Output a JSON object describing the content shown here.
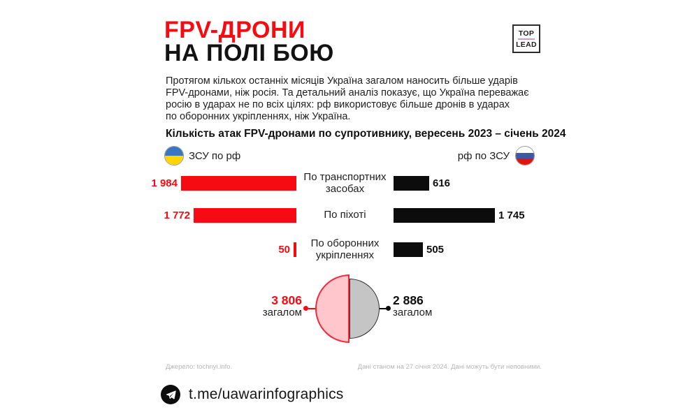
{
  "header": {
    "title_line1": "FPV-ДРОНИ",
    "title_line2": "НА ПОЛІ БОЮ",
    "logo_top": "TOP",
    "logo_lead": "LEAD"
  },
  "intro_lines": [
    "Протягом кількох останніх місяців Україна загалом наносить більше ударів",
    "FPV-дронами, ніж росія. Та детальний аналіз показує, що Україна переважає",
    "росію в ударах не по всіх цілях: рф використовує більше дронів в ударах",
    "по оборонних укріпленнях, ніж Україна."
  ],
  "chart_data": {
    "type": "bar",
    "title": "Кількість атак FPV-дронами по супротивнику, вересень 2023 – січень 2024",
    "legend": [
      {
        "label": "ЗСУ по рф",
        "flag": "ukraine",
        "color": "#f60b12"
      },
      {
        "label": "рф по ЗСУ",
        "flag": "russia",
        "color": "#0c0c0c"
      }
    ],
    "categories": [
      "По транспортних\nзасобах",
      "По піхоті",
      "По оборонних\nукріпленнях"
    ],
    "series": [
      {
        "name": "ЗСУ по рф",
        "values": [
          1984,
          1772,
          50
        ],
        "labels": [
          "1 984",
          "1 772",
          "50"
        ]
      },
      {
        "name": "рф по ЗСУ",
        "values": [
          616,
          1745,
          505
        ],
        "labels": [
          "616",
          "1 745",
          "505"
        ]
      }
    ],
    "totals": [
      {
        "name": "ЗСУ по рф",
        "value": 3806,
        "label": "3 806",
        "caption": "загалом"
      },
      {
        "name": "рф по ЗСУ",
        "value": 2886,
        "label": "2 886",
        "caption": "загалом"
      }
    ],
    "layout_hint": "diverging horizontal bars, red left vs black right, half-circle totals below"
  },
  "footer": {
    "source": "Джерело: tochnyi.info.",
    "note": "Дані станом на 27 січня 2024. Дані можуть бути неповними."
  },
  "bottom": {
    "link": "t.me/uawarinfographics"
  },
  "colors": {
    "accent_red": "#f60b12",
    "black": "#0c0c0c",
    "pink_fill": "#ffc6cb",
    "gray_fill": "#c5c5c5",
    "footer_gray": "#b6b6b6",
    "logo_divider_pink": "#cf9ec2",
    "ua_blue": "#3a75c4",
    "ua_yellow": "#ffd500",
    "ru_white": "#ffffff",
    "ru_blue": "#3d58a6",
    "ru_red": "#e0150e"
  }
}
